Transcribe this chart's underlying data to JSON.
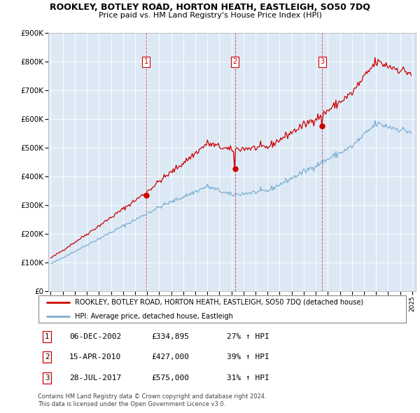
{
  "title": "ROOKLEY, BOTLEY ROAD, HORTON HEATH, EASTLEIGH, SO50 7DQ",
  "subtitle": "Price paid vs. HM Land Registry's House Price Index (HPI)",
  "ylabel_ticks": [
    "£0",
    "£100K",
    "£200K",
    "£300K",
    "£400K",
    "£500K",
    "£600K",
    "£700K",
    "£800K",
    "£900K"
  ],
  "ylim": [
    0,
    900000
  ],
  "xlim_start": 1994.8,
  "xlim_end": 2025.3,
  "red_color": "#cc0000",
  "blue_color": "#7bafd4",
  "legend_entry1": "ROOKLEY, BOTLEY ROAD, HORTON HEATH, EASTLEIGH, SO50 7DQ (detached house)",
  "legend_entry2": "HPI: Average price, detached house, Eastleigh",
  "transactions": [
    {
      "num": 1,
      "date": "06-DEC-2002",
      "price": "£334,895",
      "pct": "27% ↑ HPI",
      "year": 2002.92,
      "price_val": 334895
    },
    {
      "num": 2,
      "date": "15-APR-2010",
      "price": "£427,000",
      "pct": "39% ↑ HPI",
      "year": 2010.29,
      "price_val": 427000
    },
    {
      "num": 3,
      "date": "28-JUL-2017",
      "price": "£575,000",
      "pct": "31% ↑ HPI",
      "year": 2017.54,
      "price_val": 575000
    }
  ],
  "footnote1": "Contains HM Land Registry data © Crown copyright and database right 2024.",
  "footnote2": "This data is licensed under the Open Government Licence v3.0.",
  "chart_bg": "#dce9f5"
}
